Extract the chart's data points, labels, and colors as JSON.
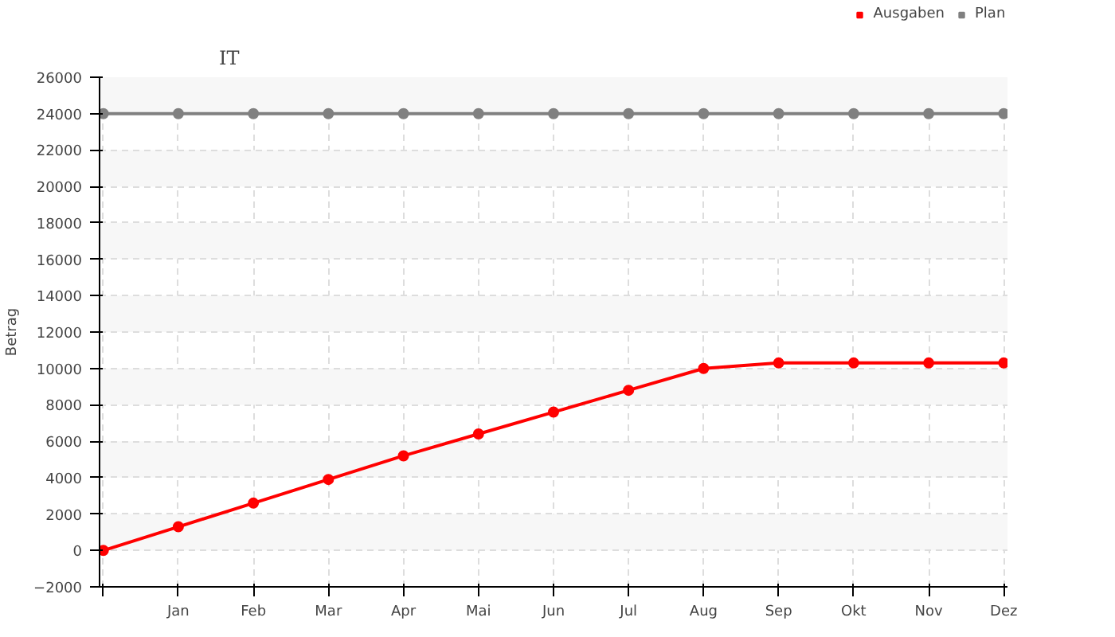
{
  "chart_data": {
    "type": "line",
    "title": "IT",
    "ylabel": "Betrag",
    "categories": [
      null,
      "Jan",
      "Feb",
      "Mar",
      "Apr",
      "Mai",
      "Jun",
      "Jul",
      "Aug",
      "Sep",
      "Okt",
      "Nov",
      "Dez"
    ],
    "series": [
      {
        "name": "Ausgaben",
        "color": "#ff0000",
        "values": [
          0,
          1300,
          2600,
          3900,
          5200,
          6400,
          7600,
          8800,
          10000,
          10300,
          10300,
          10300,
          10300
        ]
      },
      {
        "name": "Plan",
        "color": "#808080",
        "values": [
          24000,
          24000,
          24000,
          24000,
          24000,
          24000,
          24000,
          24000,
          24000,
          24000,
          24000,
          24000,
          24000
        ]
      }
    ],
    "ylim": [
      -2000,
      26000
    ],
    "yticks": [
      -2000,
      0,
      2000,
      4000,
      6000,
      8000,
      10000,
      12000,
      14000,
      16000,
      18000,
      20000,
      22000,
      24000,
      26000
    ],
    "grid": true,
    "legend": "top right",
    "marker": "circle",
    "line_style": "solid"
  }
}
